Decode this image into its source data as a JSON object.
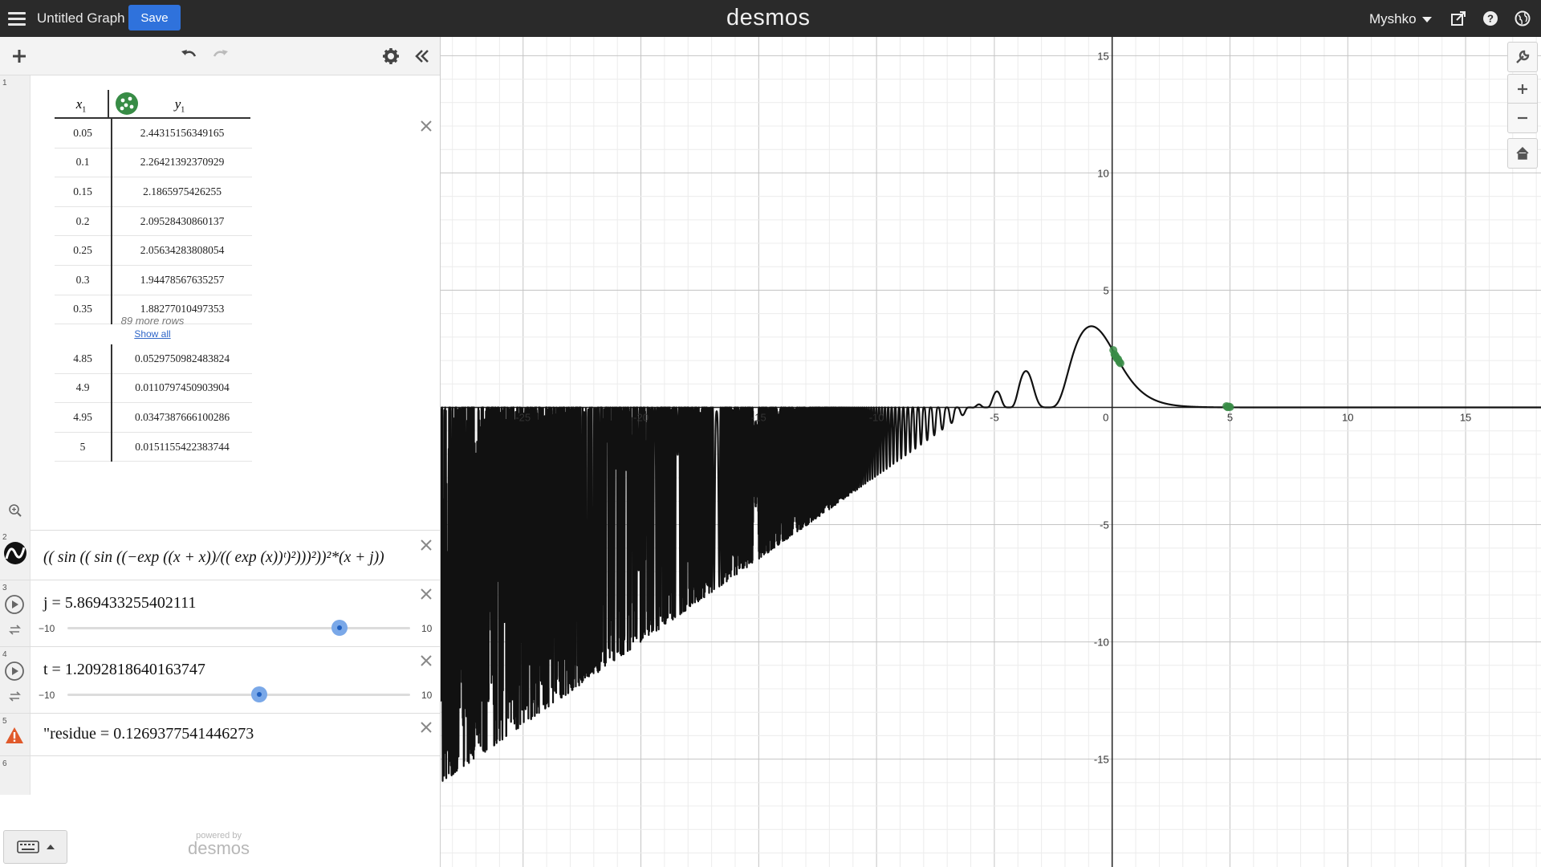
{
  "header": {
    "graph_title": "Untitled Graph",
    "save_label": "Save",
    "brand": "desmos",
    "user": "Myshko"
  },
  "table": {
    "row_number": "1",
    "col_x": "x",
    "col_y": "y",
    "subscript": "1",
    "rows": [
      [
        "0.05",
        "2.44315156349165"
      ],
      [
        "0.1",
        "2.26421392370929"
      ],
      [
        "0.15",
        "2.1865975426255"
      ],
      [
        "0.2",
        "2.09528430860137"
      ],
      [
        "0.25",
        "2.05634283808054"
      ],
      [
        "0.3",
        "1.94478567635257"
      ],
      [
        "0.35",
        "1.88277010497353"
      ]
    ],
    "more_rows": "89 more rows",
    "show_all": "Show all",
    "tail_rows": [
      [
        "4.85",
        "0.0529750982483824"
      ],
      [
        "4.9",
        "0.0110797450903904"
      ],
      [
        "4.95",
        "0.0347387666100286"
      ],
      [
        "5",
        "0.0151155422383744"
      ]
    ],
    "color": "#388c46"
  },
  "expressions": {
    "e2": {
      "num": "2",
      "latex": "(( sin (( sin ((−exp ((x + x))/(( exp (x))ᵗ)²)))²))²*(x + j))"
    },
    "e3": {
      "num": "3",
      "label": "j = 5.869433255402111",
      "min": "−10",
      "max": "10",
      "value": 5.869433255402111
    },
    "e4": {
      "num": "4",
      "label": "t = 1.2092818640163747",
      "min": "−10",
      "max": "10",
      "value": 1.2092818640163747
    },
    "e5": {
      "num": "5",
      "label": "\"residue = 0.1269377541446273"
    },
    "e6": {
      "num": "6"
    }
  },
  "footer": {
    "powered_by": "powered by",
    "brand": "desmos"
  },
  "axes": {
    "x_ticks": [
      "-25",
      "-20",
      "-15",
      "-10",
      "-5",
      "0",
      "5",
      "10",
      "15"
    ],
    "y_ticks": [
      "15",
      "10",
      "5",
      "-5",
      "-10",
      "-15"
    ],
    "x_range": [
      -28.5,
      18.2
    ],
    "y_range": [
      -19.6,
      15.8
    ]
  },
  "colors": {
    "topbar": "#2a2a2a",
    "save": "#2f72dc",
    "curve": "#111111",
    "points": "#388c46",
    "warning": "#e0592a"
  },
  "icons": {
    "menu": "hamburger-icon",
    "add": "plus-icon",
    "undo": "undo-icon",
    "redo": "redo-icon",
    "settings": "gear-icon",
    "collapse": "double-chevron-left-icon",
    "share": "share-icon",
    "help": "help-icon",
    "language": "globe-icon",
    "wrench": "wrench-icon",
    "zoom_in": "plus-icon",
    "zoom_out": "minus-icon",
    "home": "home-icon",
    "keyboard": "keyboard-icon"
  }
}
